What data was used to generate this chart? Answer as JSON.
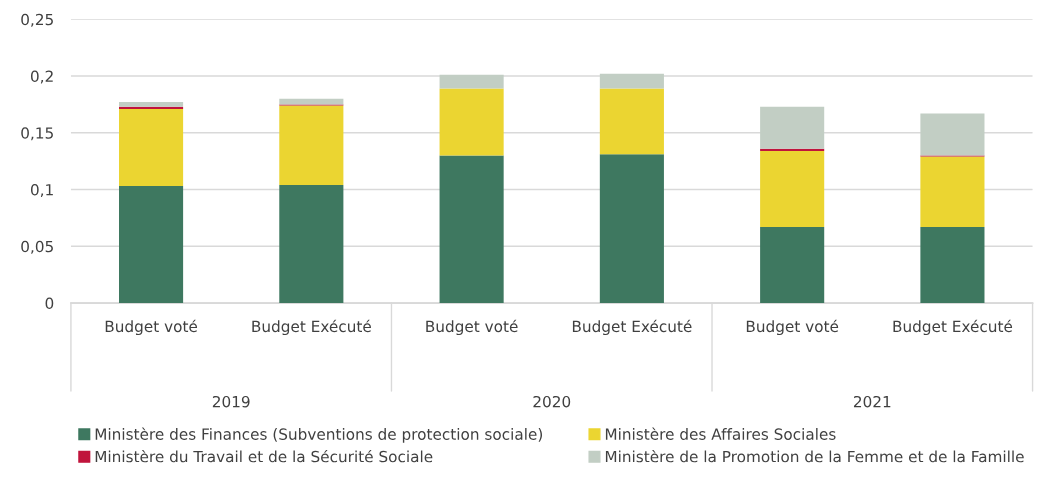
{
  "chart_data": {
    "type": "bar",
    "stacked": true,
    "categories": [
      "Budget voté",
      "Budget Exécuté",
      "Budget voté",
      "Budget Exécuté",
      "Budget voté",
      "Budget Exécuté"
    ],
    "annotations": [
      "2019",
      "2020",
      "2021"
    ],
    "series": [
      {
        "name": "Ministère des Finances (Subventions de protection sociale)",
        "color": "#3e7860",
        "values": [
          0.103,
          0.104,
          0.13,
          0.131,
          0.067,
          0.067
        ]
      },
      {
        "name": "Ministère des Affaires Sociales",
        "color": "#ebd531",
        "values": [
          0.068,
          0.07,
          0.059,
          0.058,
          0.067,
          0.062
        ]
      },
      {
        "name": "Ministère du Travail et de la Sécurité Sociale",
        "color": "#c0143c",
        "values": [
          0.002,
          0.001,
          0,
          0,
          0.002,
          0.001
        ]
      },
      {
        "name": "Ministère de la Promotion de la Femme et de la Famille",
        "color": "#c2cec4",
        "values": [
          0.004,
          0.005,
          0.012,
          0.013,
          0.037,
          0.037
        ]
      }
    ],
    "ylim": [
      0,
      0.25
    ],
    "yticks": [
      0,
      {
        "value": 0.05,
        "label": "0,05"
      },
      {
        "value": 0.1,
        "label": "0,1"
      },
      {
        "value": 0.15,
        "label": "0,15"
      },
      {
        "value": 0.2,
        "label": "0,2"
      },
      {
        "value": 0.25,
        "label": "0,25"
      }
    ],
    "grid": "y",
    "legend": "bottom"
  }
}
